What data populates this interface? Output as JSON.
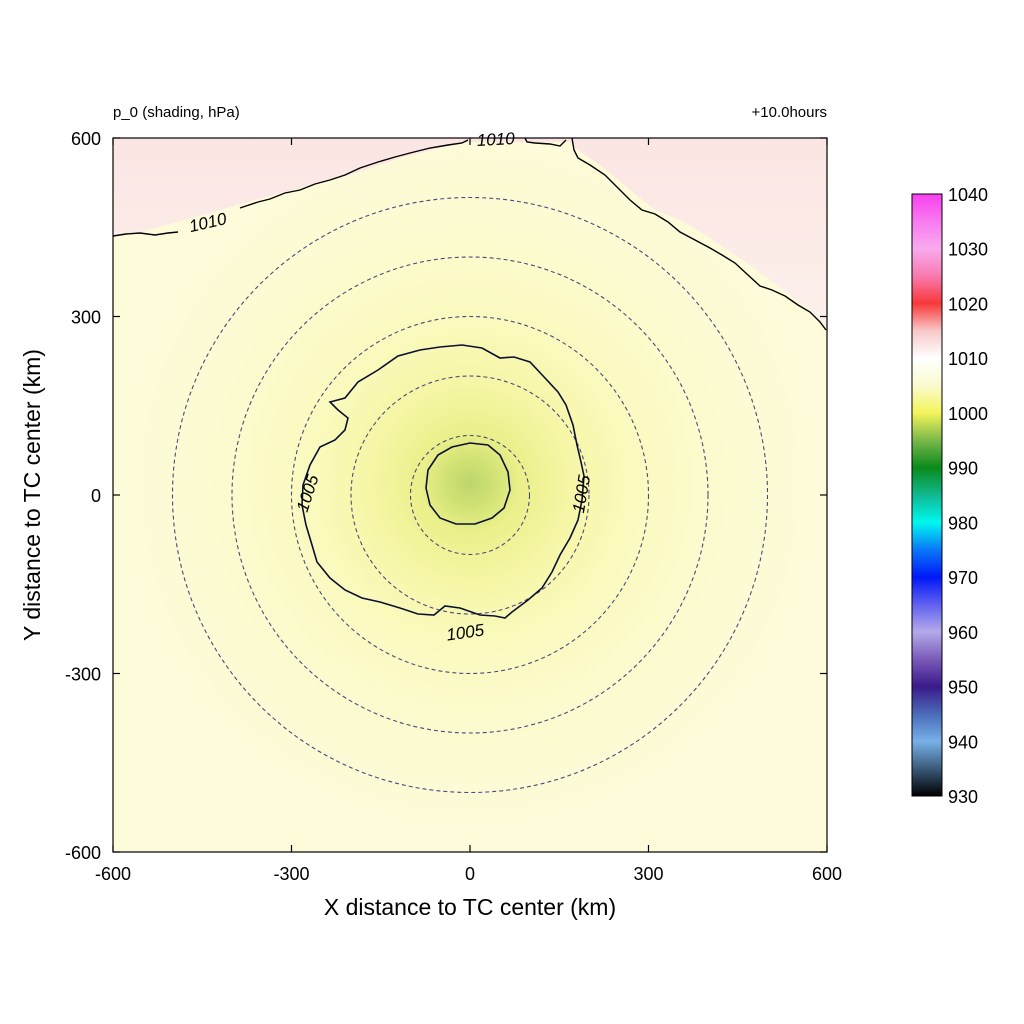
{
  "chart_data": {
    "type": "heatmap",
    "title_left": "p_0 (shading, hPa)",
    "title_right": "+10.0hours",
    "xlabel": "X distance to TC center (km)",
    "ylabel": "Y distance to TC center (km)",
    "xlim": [
      -600,
      600
    ],
    "ylim": [
      -600,
      600
    ],
    "xticks": [
      -600,
      -300,
      0,
      300,
      600
    ],
    "yticks": [
      -600,
      -300,
      0,
      300,
      600
    ],
    "xtick_labels": [
      "-600",
      "-300",
      "0",
      "300",
      "600"
    ],
    "ytick_labels": [
      "-600",
      "-300",
      "0",
      "300",
      "600"
    ],
    "field": {
      "center_km": [
        0,
        20
      ],
      "min_hpa": 996.5,
      "far_hpa": 1008.5
    },
    "range_rings_km": [
      100,
      200,
      300,
      400,
      500
    ],
    "contour_labels": [
      "1010",
      "1010",
      "1005",
      "1005",
      "1005"
    ],
    "colorbar": {
      "min": 930,
      "max": 1040,
      "tick_labels": [
        "1040",
        "1030",
        "1020",
        "1010",
        "1000",
        "990",
        "980",
        "970",
        "960",
        "950",
        "940",
        "930"
      ],
      "stops": [
        {
          "v": 930,
          "c": "#000000"
        },
        {
          "v": 935,
          "c": "#3a5a7a"
        },
        {
          "v": 940,
          "c": "#78b0e8"
        },
        {
          "v": 945,
          "c": "#4a6ab8"
        },
        {
          "v": 950,
          "c": "#3a1a8a"
        },
        {
          "v": 955,
          "c": "#7a5ab8"
        },
        {
          "v": 960,
          "c": "#b4aaea"
        },
        {
          "v": 965,
          "c": "#6060f0"
        },
        {
          "v": 970,
          "c": "#0018f8"
        },
        {
          "v": 975,
          "c": "#0a78f8"
        },
        {
          "v": 980,
          "c": "#00f8f0"
        },
        {
          "v": 985,
          "c": "#10b890"
        },
        {
          "v": 990,
          "c": "#0a8a1a"
        },
        {
          "v": 995,
          "c": "#7ab84a"
        },
        {
          "v": 1000,
          "c": "#f4f45a"
        },
        {
          "v": 1005,
          "c": "#fafad0"
        },
        {
          "v": 1010,
          "c": "#ffffff"
        },
        {
          "v": 1015,
          "c": "#f8c8c8"
        },
        {
          "v": 1020,
          "c": "#f83838"
        },
        {
          "v": 1025,
          "c": "#f87ab0"
        },
        {
          "v": 1030,
          "c": "#f8aaee"
        },
        {
          "v": 1035,
          "c": "#f87af0"
        },
        {
          "v": 1040,
          "c": "#f840f0"
        }
      ]
    }
  }
}
